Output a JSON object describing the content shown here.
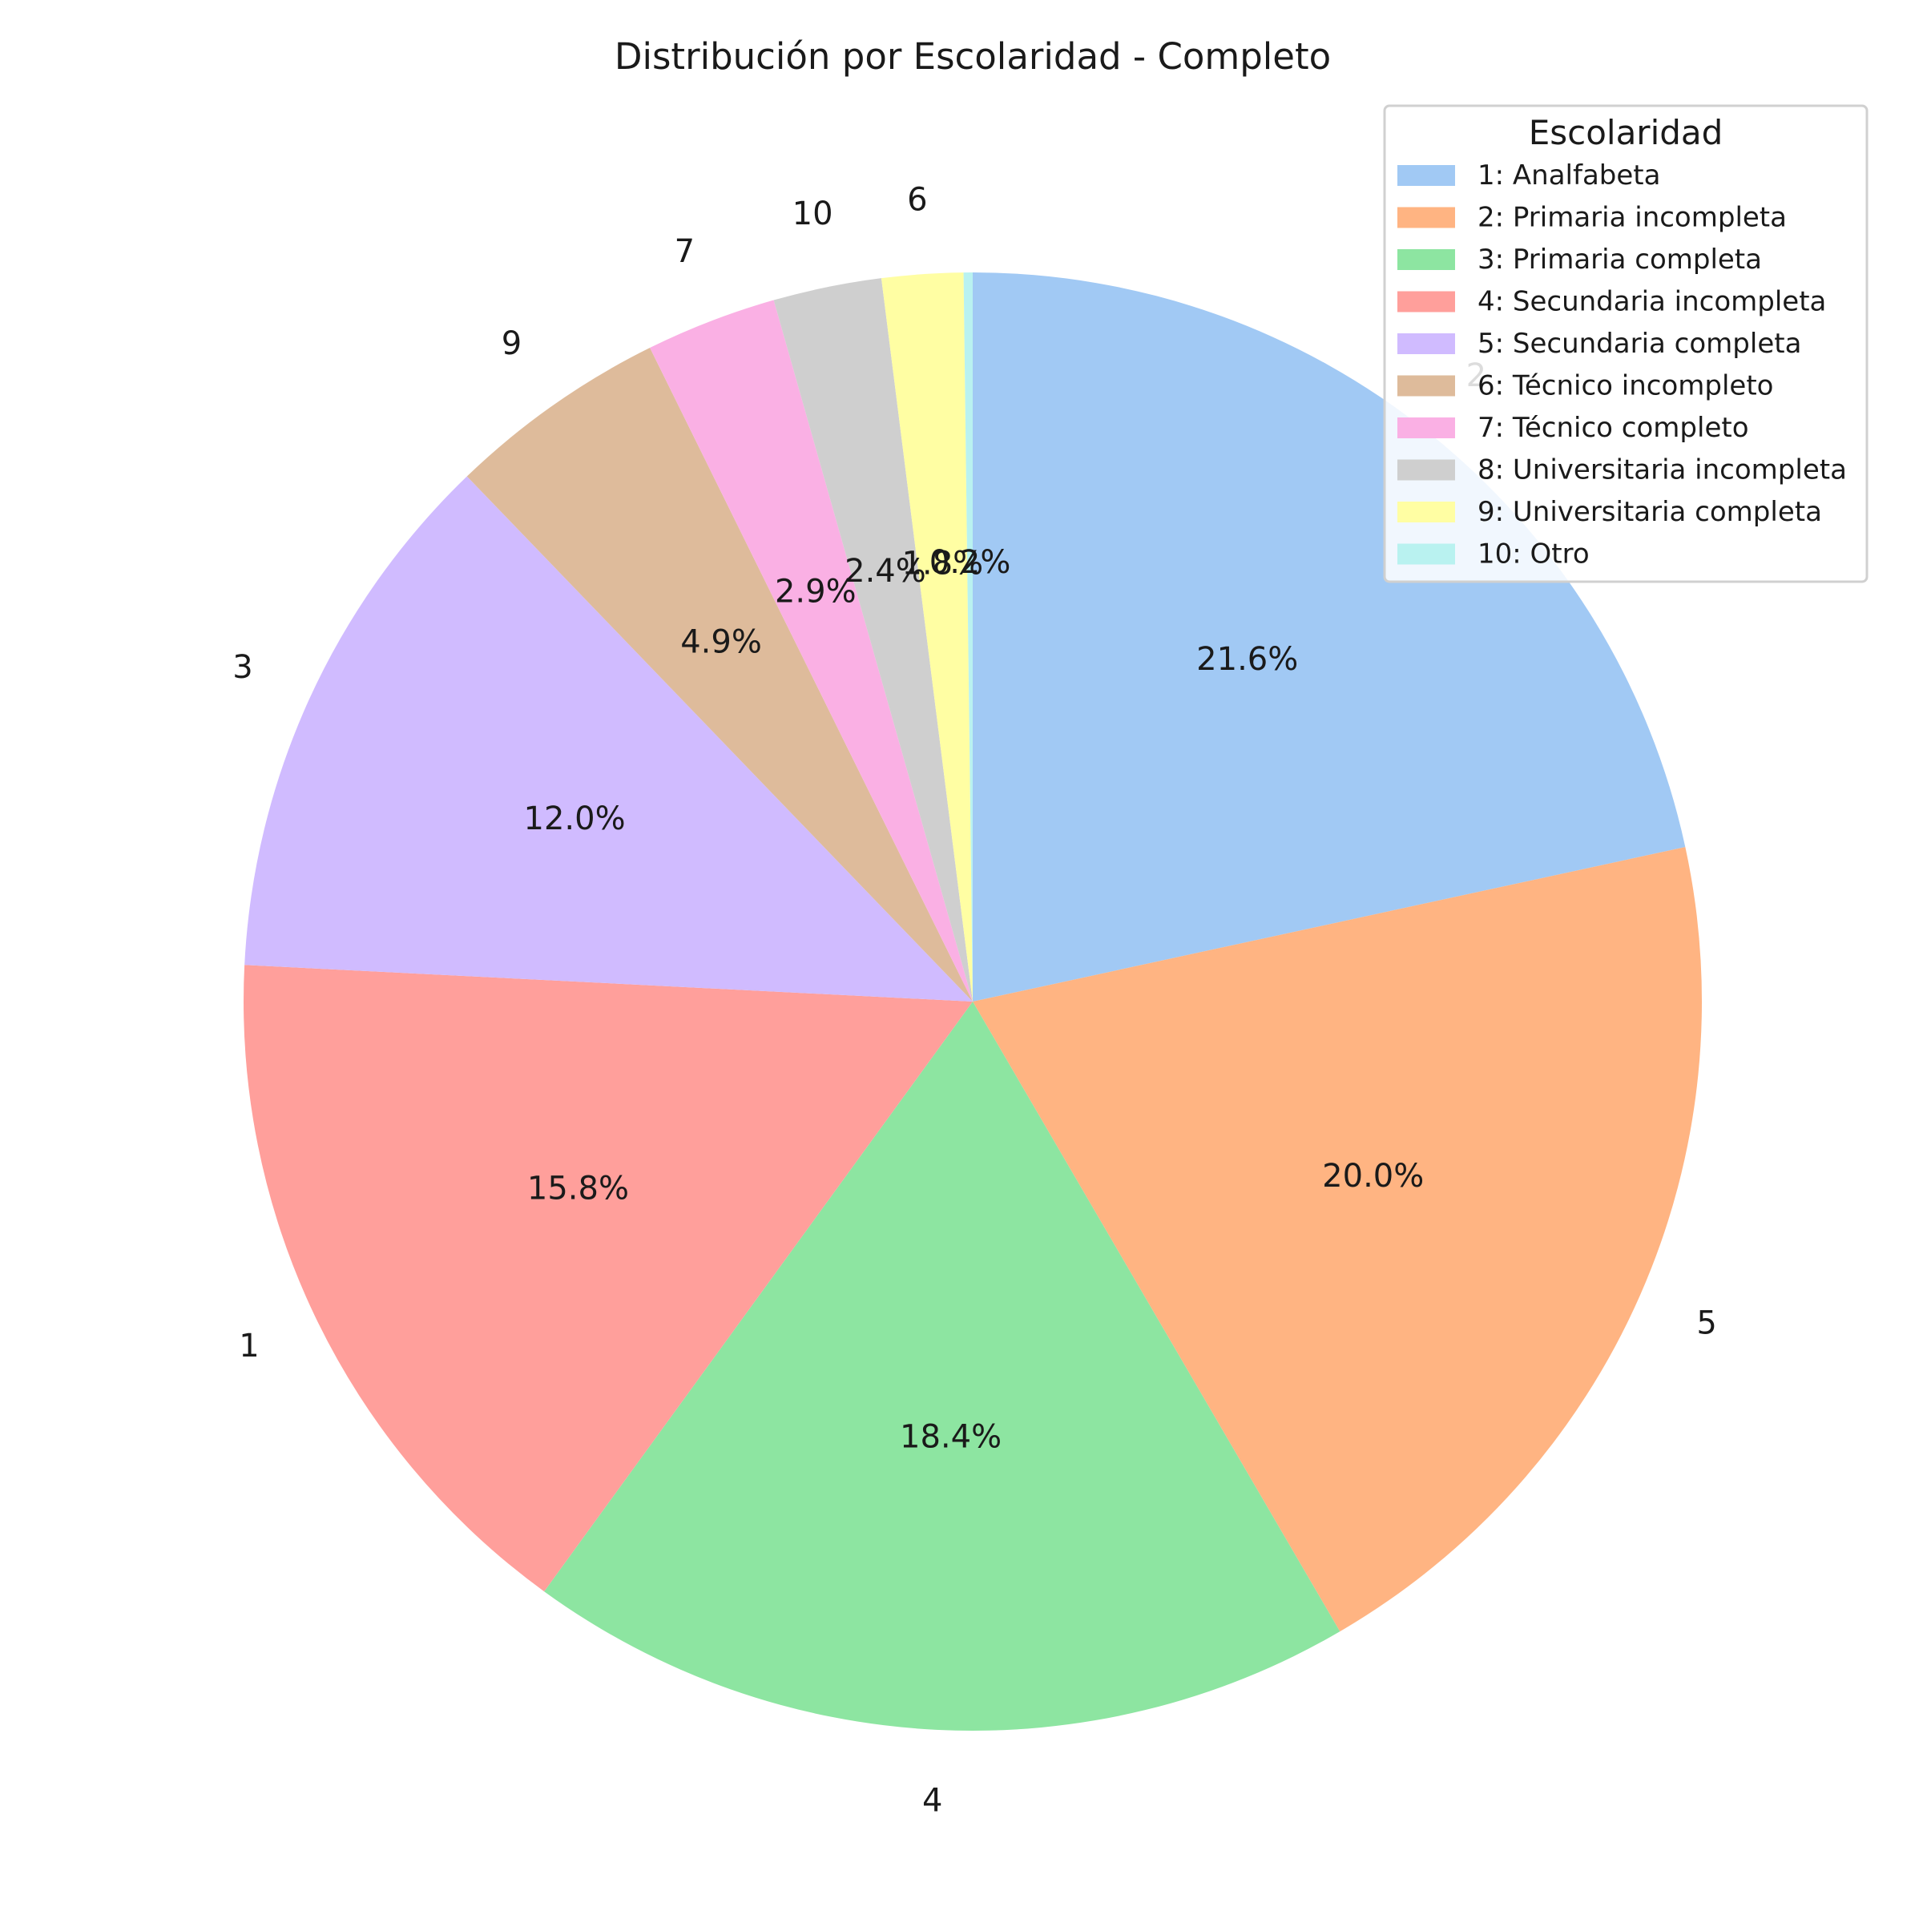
{
  "chart_data": {
    "type": "pie",
    "title": "Distribución por Escolaridad - Completo",
    "start_angle_deg": 90,
    "direction": "clockwise",
    "legend": {
      "title": "Escolaridad",
      "placement": "top-right",
      "entries": [
        {
          "label": "1: Analfabeta",
          "color": "#a1c9f4"
        },
        {
          "label": "2: Primaria incompleta",
          "color": "#ffb482"
        },
        {
          "label": "3: Primaria completa",
          "color": "#8de5a1"
        },
        {
          "label": "4: Secundaria incompleta",
          "color": "#ff9f9b"
        },
        {
          "label": "5: Secundaria completa",
          "color": "#d0bbff"
        },
        {
          "label": "6: Técnico incompleto",
          "color": "#debb9b"
        },
        {
          "label": "7: Técnico completo",
          "color": "#fab0e4"
        },
        {
          "label": "8: Universitaria incompleta",
          "color": "#cfcfcf"
        },
        {
          "label": "9: Universitaria completa",
          "color": "#fffea3"
        },
        {
          "label": "10: Otro",
          "color": "#b9f2f0"
        }
      ]
    },
    "slices": [
      {
        "label": "2",
        "value": 21.6,
        "pct_text": "21.6%",
        "color": "#a1c9f4"
      },
      {
        "label": "5",
        "value": 20.0,
        "pct_text": "20.0%",
        "color": "#ffb482"
      },
      {
        "label": "4",
        "value": 18.4,
        "pct_text": "18.4%",
        "color": "#8de5a1"
      },
      {
        "label": "1",
        "value": 15.8,
        "pct_text": "15.8%",
        "color": "#ff9f9b"
      },
      {
        "label": "3",
        "value": 12.0,
        "pct_text": "12.0%",
        "color": "#d0bbff"
      },
      {
        "label": "9",
        "value": 4.9,
        "pct_text": "4.9%",
        "color": "#debb9b"
      },
      {
        "label": "7",
        "value": 2.9,
        "pct_text": "2.9%",
        "color": "#fab0e4"
      },
      {
        "label": "10",
        "value": 2.4,
        "pct_text": "2.4%",
        "color": "#cfcfcf"
      },
      {
        "label": "6",
        "value": 1.8,
        "pct_text": "1.8%",
        "color": "#fffea3"
      },
      {
        "label": "",
        "value": 0.2,
        "pct_text": "0.2%",
        "color": "#b9f2f0"
      }
    ]
  }
}
